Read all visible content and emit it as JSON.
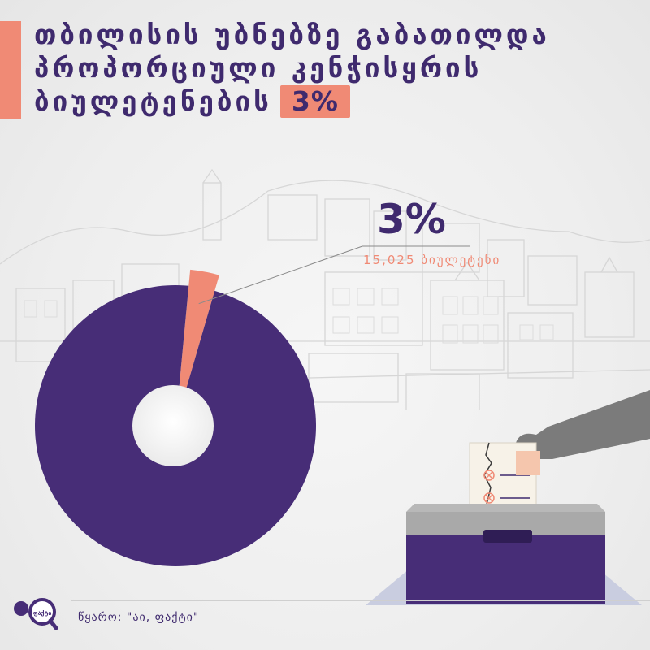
{
  "header": {
    "title_lines": [
      "თბილისის უბნებზე გაბათილდა",
      "პროპორციული კენჭისყრის"
    ],
    "title_last_line": "ბიულეტენების",
    "title_badge": "3%"
  },
  "chart_data": {
    "type": "pie",
    "slices": [
      {
        "label": "3%",
        "value": 3,
        "color": "#f08a75"
      },
      {
        "label": "",
        "value": 97,
        "color": "#472d77"
      }
    ],
    "annotation": {
      "value": "3%",
      "detail": "15,025 ბიულეტენი"
    }
  },
  "footer": {
    "source": "წყარო: \"აი, ფაქტი\"",
    "logo_text": "აი ფაქტი"
  },
  "colors": {
    "accent": "#f08a75",
    "brand": "#472d77",
    "text": "#3f2a6e"
  },
  "icons": [
    "ballot-box-icon",
    "hand-icon",
    "ballot-paper-icon",
    "magnifier-logo-icon"
  ]
}
